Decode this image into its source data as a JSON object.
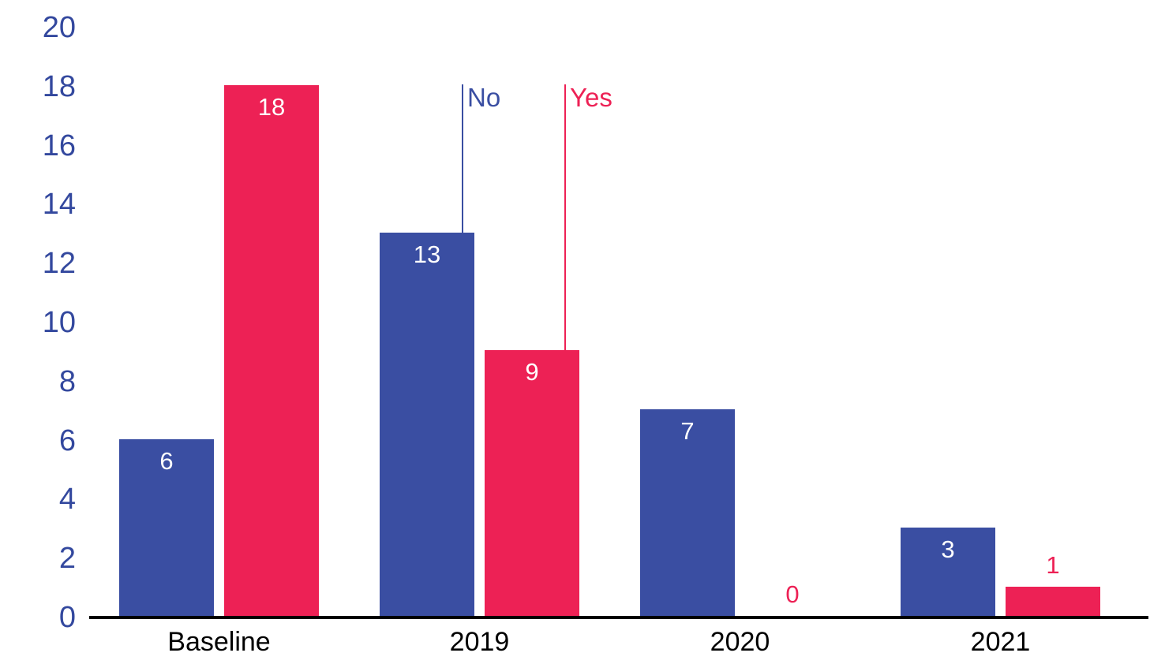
{
  "chart_data": {
    "type": "bar",
    "title": "",
    "xlabel": "",
    "ylabel": "",
    "categories": [
      "Baseline",
      "2019",
      "2020",
      "2021"
    ],
    "series": [
      {
        "name": "No",
        "color": "#3A4EA2",
        "values": [
          6,
          13,
          7,
          3
        ]
      },
      {
        "name": "Yes",
        "color": "#ED2155",
        "values": [
          18,
          9,
          0,
          1
        ]
      }
    ],
    "ylim": [
      0,
      20
    ],
    "yticks": [
      0,
      2,
      4,
      6,
      8,
      10,
      12,
      14,
      16,
      18,
      20
    ],
    "grid": false,
    "bar_value_labels_shown": true,
    "legend": {
      "style": "callout-lines-pointing-to-2019-bars",
      "entries": [
        {
          "label": "No",
          "color": "#3A4EA2"
        },
        {
          "label": "Yes",
          "color": "#ED2155"
        }
      ]
    },
    "colors": {
      "axis_tick_text": "#33489E",
      "category_text": "#000000",
      "axis_line": "#000000",
      "background": "#FFFFFF",
      "in_bar_label": "#FFFFFF"
    }
  }
}
